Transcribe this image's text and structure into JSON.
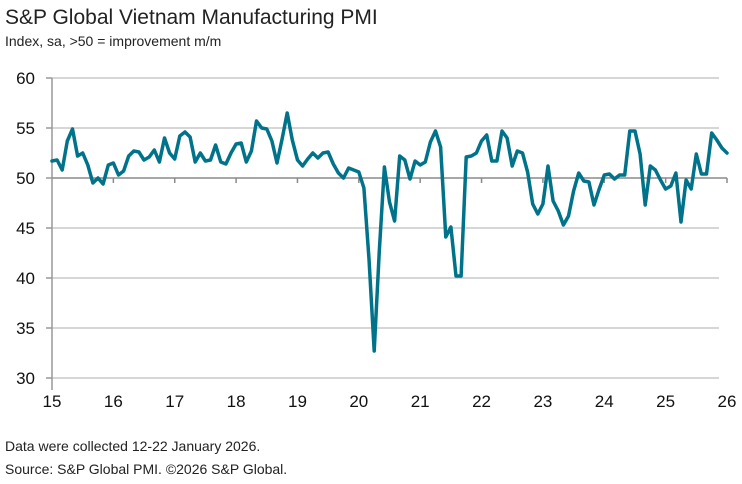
{
  "chart_data": {
    "type": "line",
    "title": "S&P Global Vietnam Manufacturing PMI",
    "subtitle": "Index, sa, >50 = improvement m/m",
    "xlabel": "",
    "ylabel": "",
    "ylim": [
      30,
      60
    ],
    "yticks": [
      "30",
      "35",
      "40",
      "45",
      "50",
      "55",
      "60"
    ],
    "xticks": [
      "15",
      "16",
      "17",
      "18",
      "19",
      "20",
      "21",
      "22",
      "23",
      "24",
      "25",
      "26"
    ],
    "grid": "horizontal",
    "line_color": "#00738A",
    "x": [
      "2015-01",
      "2015-02",
      "2015-03",
      "2015-04",
      "2015-05",
      "2015-06",
      "2015-07",
      "2015-08",
      "2015-09",
      "2015-10",
      "2015-11",
      "2015-12",
      "2016-01",
      "2016-02",
      "2016-03",
      "2016-04",
      "2016-05",
      "2016-06",
      "2016-07",
      "2016-08",
      "2016-09",
      "2016-10",
      "2016-11",
      "2016-12",
      "2017-01",
      "2017-02",
      "2017-03",
      "2017-04",
      "2017-05",
      "2017-06",
      "2017-07",
      "2017-08",
      "2017-09",
      "2017-10",
      "2017-11",
      "2017-12",
      "2018-01",
      "2018-02",
      "2018-03",
      "2018-04",
      "2018-05",
      "2018-06",
      "2018-07",
      "2018-08",
      "2018-09",
      "2018-10",
      "2018-11",
      "2018-12",
      "2019-01",
      "2019-02",
      "2019-03",
      "2019-04",
      "2019-05",
      "2019-06",
      "2019-07",
      "2019-08",
      "2019-09",
      "2019-10",
      "2019-11",
      "2019-12",
      "2020-01",
      "2020-02",
      "2020-03",
      "2020-04",
      "2020-05",
      "2020-06",
      "2020-07",
      "2020-08",
      "2020-09",
      "2020-10",
      "2020-11",
      "2020-12",
      "2021-01",
      "2021-02",
      "2021-03",
      "2021-04",
      "2021-05",
      "2021-06",
      "2021-07",
      "2021-08",
      "2021-09",
      "2021-10",
      "2021-11",
      "2021-12",
      "2022-01",
      "2022-02",
      "2022-03",
      "2022-04",
      "2022-05",
      "2022-06",
      "2022-07",
      "2022-08",
      "2022-09",
      "2022-10",
      "2022-11",
      "2022-12",
      "2023-01",
      "2023-02",
      "2023-03",
      "2023-04",
      "2023-05",
      "2023-06",
      "2023-07",
      "2023-08",
      "2023-09",
      "2023-10",
      "2023-11",
      "2023-12",
      "2024-01",
      "2024-02",
      "2024-03",
      "2024-04",
      "2024-05",
      "2024-06",
      "2024-07",
      "2024-08",
      "2024-09",
      "2024-10",
      "2024-11",
      "2024-12",
      "2025-01",
      "2025-02",
      "2025-03",
      "2025-04",
      "2025-05",
      "2025-06",
      "2025-07",
      "2025-08",
      "2025-09",
      "2025-10",
      "2025-11",
      "2025-12",
      "2026-01"
    ],
    "values": [
      51.7,
      51.8,
      50.8,
      53.7,
      54.9,
      52.2,
      52.5,
      51.3,
      49.5,
      50.0,
      49.4,
      51.3,
      51.5,
      50.3,
      50.7,
      52.2,
      52.7,
      52.6,
      51.8,
      52.1,
      52.8,
      51.6,
      54.0,
      52.5,
      51.9,
      54.2,
      54.6,
      54.1,
      51.6,
      52.5,
      51.7,
      51.8,
      53.3,
      51.6,
      51.4,
      52.5,
      53.4,
      53.5,
      51.6,
      52.7,
      55.7,
      55.0,
      54.9,
      53.7,
      51.5,
      53.9,
      56.5,
      53.8,
      51.8,
      51.2,
      51.9,
      52.5,
      52.0,
      52.5,
      52.6,
      51.4,
      50.5,
      50.0,
      51.0,
      50.8,
      50.6,
      49.0,
      41.9,
      32.7,
      42.7,
      51.1,
      47.6,
      45.7,
      52.2,
      51.8,
      49.9,
      51.7,
      51.3,
      51.6,
      53.6,
      54.7,
      53.1,
      44.1,
      45.1,
      40.2,
      40.2,
      52.1,
      52.2,
      52.5,
      53.7,
      54.3,
      51.7,
      51.7,
      54.7,
      54.0,
      51.2,
      52.7,
      52.5,
      50.6,
      47.4,
      46.4,
      47.4,
      51.2,
      47.7,
      46.7,
      45.3,
      46.2,
      48.7,
      50.5,
      49.7,
      49.6,
      47.3,
      48.9,
      50.3,
      50.4,
      49.9,
      50.3,
      50.3,
      54.7,
      54.7,
      52.4,
      47.3,
      51.2,
      50.8,
      49.8,
      48.9,
      49.2,
      50.5,
      45.6,
      49.8,
      48.9,
      52.4,
      50.4,
      50.4,
      54.5,
      53.8,
      53.0,
      52.5
    ]
  },
  "footer": {
    "note": "Data were collected 12-22 January 2026.",
    "source": "Source: S&P Global PMI. ©2026 S&P Global."
  }
}
